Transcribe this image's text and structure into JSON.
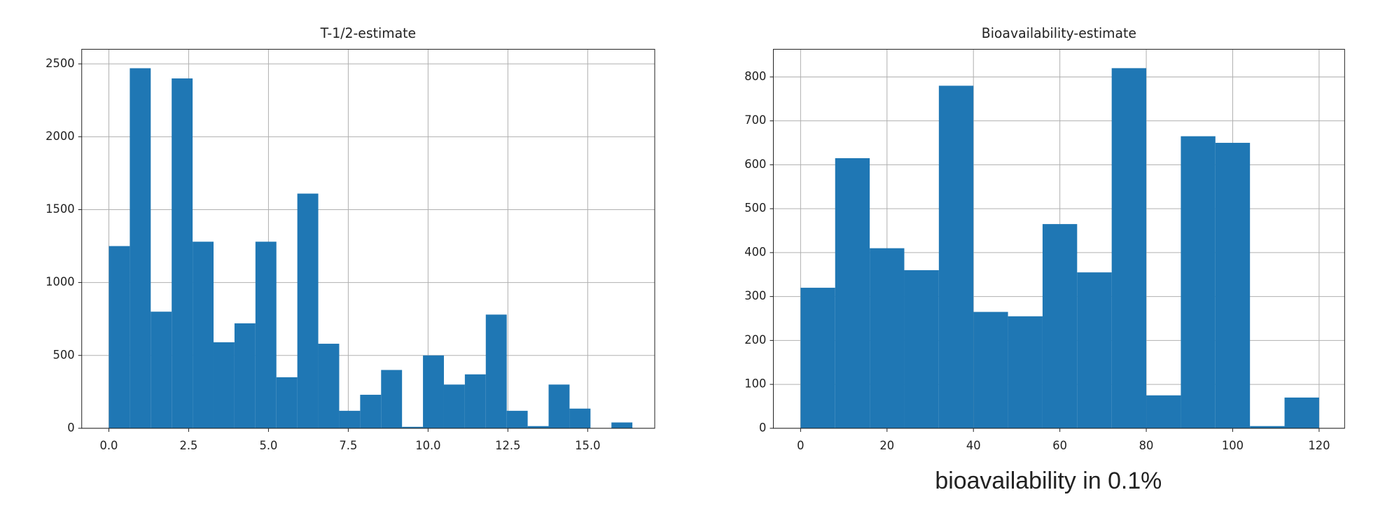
{
  "chart_data": [
    {
      "type": "histogram",
      "title": "T-1/2-estimate",
      "color": "#1f77b4",
      "grid": true,
      "bins": [
        0,
        0.656,
        1.312,
        1.968,
        2.624,
        3.28,
        3.936,
        4.592,
        5.248,
        5.904,
        6.56,
        7.216,
        7.872,
        8.528,
        9.184,
        9.84,
        10.496,
        11.152,
        11.808,
        12.464,
        13.12,
        13.776,
        14.432,
        15.088,
        15.744,
        16.4
      ],
      "counts": [
        1250,
        2470,
        800,
        2400,
        1280,
        590,
        720,
        1280,
        350,
        1610,
        580,
        120,
        230,
        400,
        10,
        500,
        300,
        370,
        780,
        120,
        15,
        300,
        135,
        0,
        40
      ],
      "xlim": [
        -0.85,
        17.1
      ],
      "ylim": [
        0,
        2600
      ],
      "xticks": [
        {
          "value": 0,
          "label": "0.0"
        },
        2.5,
        {
          "value": 5,
          "label": "5.0"
        },
        7.5,
        {
          "value": 10,
          "label": "10.0"
        },
        12.5,
        {
          "value": 15,
          "label": "15.0"
        }
      ],
      "yticks": [
        0,
        500,
        1000,
        1500,
        2000,
        2500
      ]
    },
    {
      "type": "histogram",
      "title": "Bioavailability-estimate",
      "color": "#1f77b4",
      "grid": true,
      "bins": [
        0,
        8,
        16,
        24,
        32,
        40,
        48,
        56,
        64,
        72,
        80,
        88,
        96,
        104,
        112,
        120
      ],
      "counts": [
        320,
        615,
        410,
        360,
        780,
        265,
        255,
        465,
        355,
        820,
        75,
        665,
        650,
        5,
        70
      ],
      "xlim": [
        -6.3,
        125.9
      ],
      "ylim": [
        0,
        863
      ],
      "xticks": [
        0,
        20,
        40,
        60,
        80,
        100,
        120
      ],
      "yticks": [
        0,
        100,
        200,
        300,
        400,
        500,
        600,
        700,
        800
      ],
      "annotation": "bioavailability in 0.1%"
    }
  ]
}
